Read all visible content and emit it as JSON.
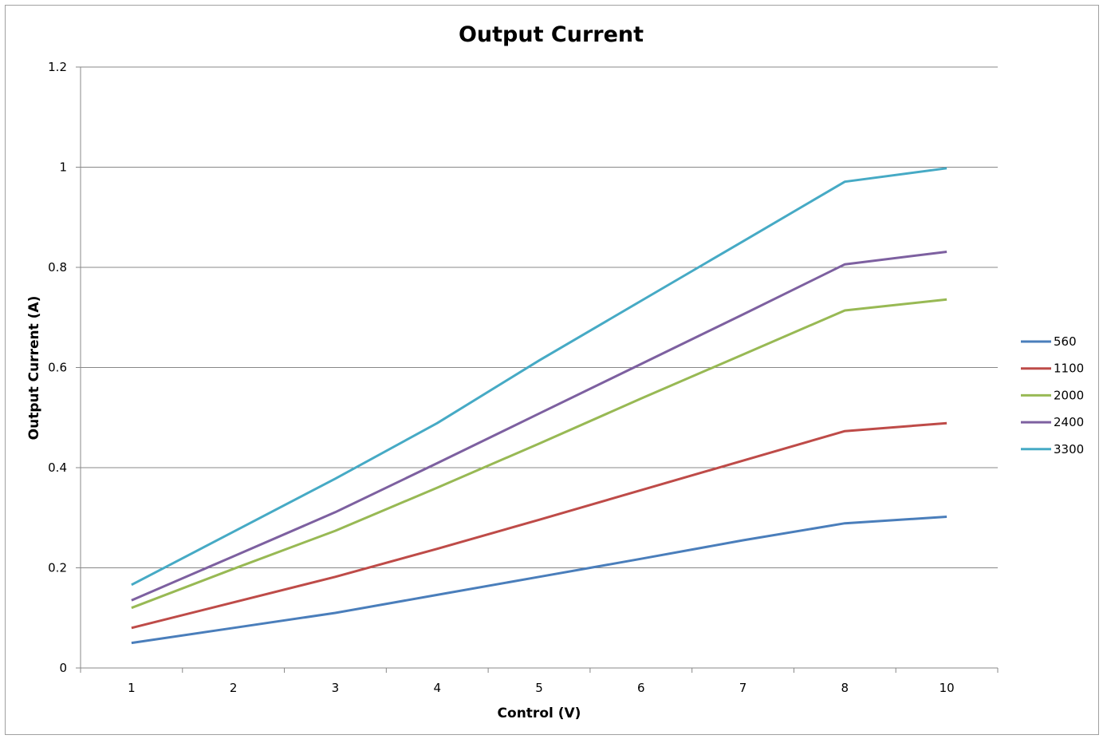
{
  "chart_data": {
    "type": "line",
    "title": "Output Current",
    "xlabel": "Control (V)",
    "ylabel": "Output Current (A)",
    "categories": [
      "1",
      "2",
      "3",
      "4",
      "5",
      "6",
      "7",
      "8",
      "10"
    ],
    "ylim": [
      0,
      1.2
    ],
    "yticks": [
      "0",
      "0.2",
      "0.4",
      "0.6",
      "0.8",
      "1",
      "1.2"
    ],
    "grid": "horizontal",
    "legend_position": "right",
    "series": [
      {
        "name": "560",
        "color": "#4a7ebb",
        "values": [
          0.05,
          0.08,
          0.11,
          0.146,
          0.182,
          0.218,
          0.255,
          0.289,
          0.302
        ]
      },
      {
        "name": "1100",
        "color": "#be4b48",
        "values": [
          0.08,
          0.131,
          0.182,
          0.238,
          0.296,
          0.355,
          0.414,
          0.473,
          0.489
        ]
      },
      {
        "name": "2000",
        "color": "#98b954",
        "values": [
          0.12,
          0.198,
          0.274,
          0.36,
          0.448,
          0.538,
          0.626,
          0.714,
          0.736
        ]
      },
      {
        "name": "2400",
        "color": "#7d60a0",
        "values": [
          0.135,
          0.223,
          0.311,
          0.409,
          0.508,
          0.607,
          0.706,
          0.806,
          0.831
        ]
      },
      {
        "name": "3300",
        "color": "#46aac5",
        "values": [
          0.166,
          0.272,
          0.378,
          0.489,
          0.614,
          0.733,
          0.852,
          0.971,
          0.998
        ]
      }
    ]
  }
}
